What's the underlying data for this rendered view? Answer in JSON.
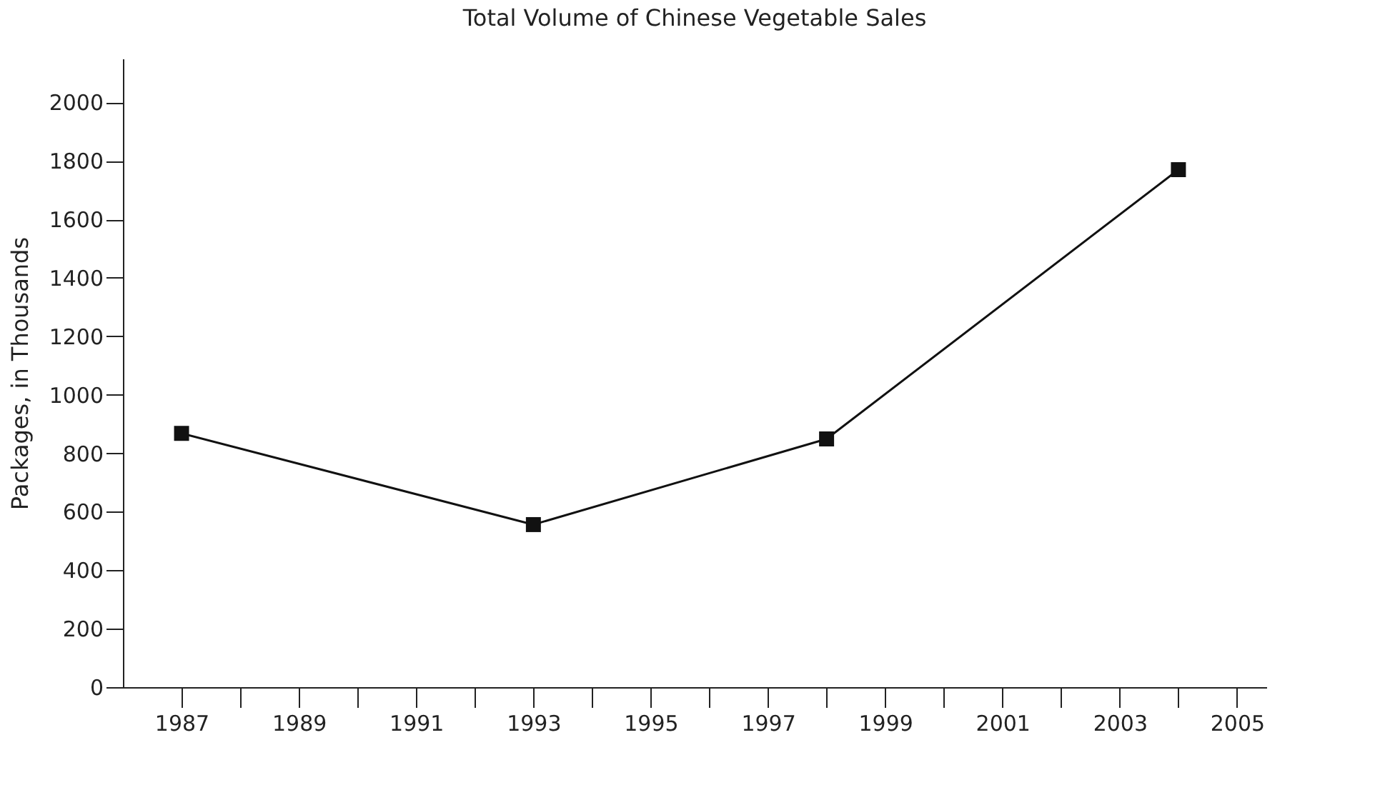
{
  "chart_data": {
    "type": "line",
    "title": "Total Volume of Chinese Vegetable Sales",
    "ylabel": "Packages, in Thousands",
    "x": [
      1987,
      1993,
      1998,
      2004
    ],
    "series": [
      {
        "color": "#111111",
        "values": [
          868,
          556,
          849,
          1770
        ]
      }
    ],
    "xlim": [
      1986,
      2005.5
    ],
    "xticks": [
      1987,
      {
        "value": 1988,
        "label": null
      },
      1989,
      {
        "value": 1990,
        "label": null
      },
      1991,
      {
        "value": 1992,
        "label": null
      },
      1993,
      {
        "value": 1994,
        "label": null
      },
      1995,
      {
        "value": 1996,
        "label": null
      },
      1997,
      {
        "value": 1998,
        "label": null
      },
      1999,
      {
        "value": 2000,
        "label": null
      },
      2001,
      {
        "value": 2002,
        "label": null
      },
      2003,
      {
        "value": 2004,
        "label": null
      },
      2005
    ],
    "ylim": [
      0,
      2150
    ],
    "yticks": [
      0,
      200,
      400,
      600,
      800,
      1000,
      1200,
      1400,
      1600,
      1800,
      2000
    ],
    "grid": false,
    "marker": "square",
    "line_style": "solid"
  }
}
